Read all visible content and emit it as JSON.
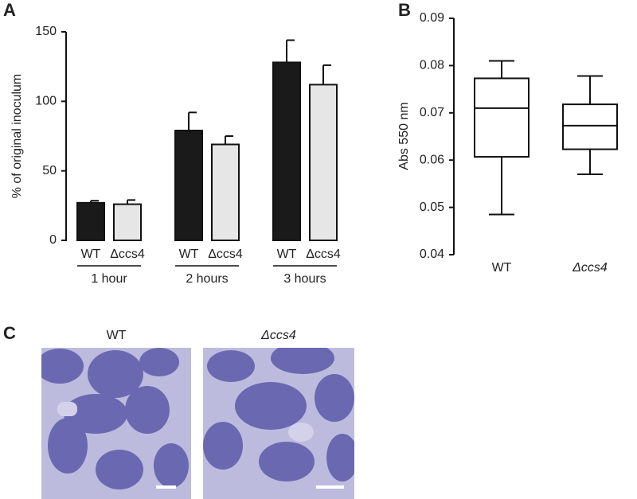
{
  "chart_data": [
    {
      "type": "bar",
      "panel_label": "A",
      "ylabel": "% of original inoculum",
      "categories": [
        "1 hour",
        "2 hours",
        "3 hours"
      ],
      "series": [
        {
          "name": "WT",
          "color": "#1a1a1a",
          "values": [
            27,
            79,
            128
          ],
          "errors": [
            1.5,
            13,
            16
          ]
        },
        {
          "name": "Δccs4",
          "color": "#e6e6e6",
          "values": [
            26,
            69,
            112
          ],
          "errors": [
            3,
            6,
            14
          ]
        }
      ],
      "ylim": [
        0,
        150
      ],
      "yticks": [
        0,
        50,
        100,
        150
      ]
    },
    {
      "type": "box",
      "panel_label": "B",
      "ylabel": "Abs 550 nm",
      "categories": [
        "WT",
        "Δccs4"
      ],
      "boxes": [
        {
          "min": 0.0485,
          "q1": 0.0607,
          "median": 0.071,
          "q3": 0.0773,
          "max": 0.081
        },
        {
          "min": 0.057,
          "q1": 0.0623,
          "median": 0.0673,
          "q3": 0.0718,
          "max": 0.0778
        }
      ],
      "ylim": [
        0.04,
        0.09
      ],
      "yticks": [
        0.04,
        0.05,
        0.06,
        0.07,
        0.08,
        0.09
      ]
    }
  ],
  "panel_c": {
    "panel_label": "C",
    "images": [
      {
        "title": "WT"
      },
      {
        "title": "Δccs4"
      }
    ]
  }
}
